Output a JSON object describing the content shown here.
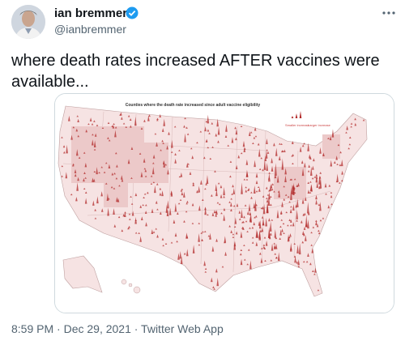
{
  "tweet": {
    "author": {
      "name": "ian bremmer",
      "handle": "@ianbremmer"
    },
    "text": "where death rates increased AFTER vaccines were available...",
    "image": {
      "title": "Counties where the death rate increased since adult vaccine eligibility",
      "legend": {
        "small": "Smaller increase",
        "large": "Larger increase"
      }
    },
    "timestamp": "8:59 PM · Dec 29, 2021 · Twitter Web App"
  }
}
